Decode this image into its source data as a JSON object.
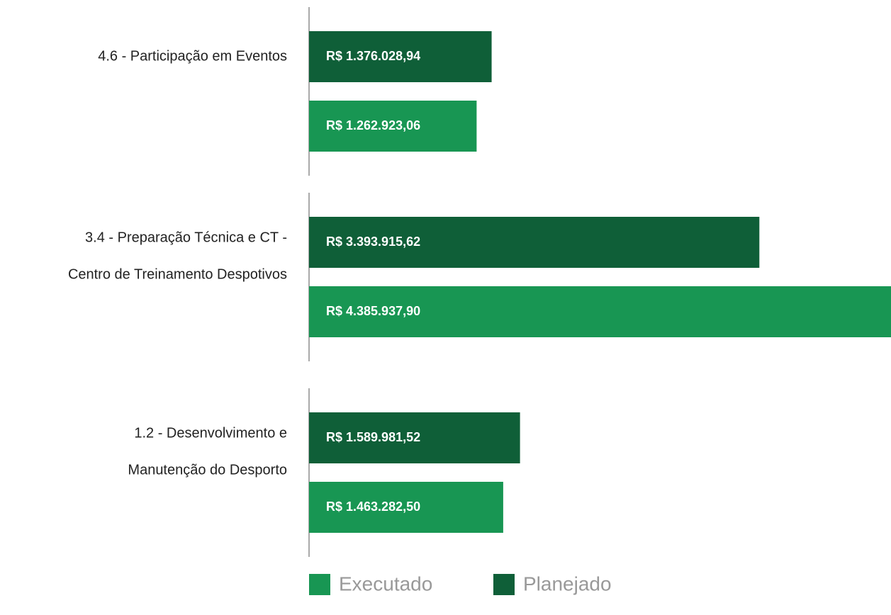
{
  "chart_data": {
    "type": "hbar",
    "categories": [
      [
        "4.6 - Participação em Eventos"
      ],
      [
        "3.4 - Preparação Técnica e CT -",
        "Centro de Treinamento Despotivos"
      ],
      [
        "1.2 - Desenvolvimento e",
        "Manutenção do Desporto"
      ]
    ],
    "series": [
      {
        "name": "Planejado",
        "color": "#0f5f38",
        "values": [
          1376028.94,
          3393915.62,
          1589981.52
        ],
        "value_labels": [
          "R$ 1.376.028,94",
          "R$ 3.393.915,62",
          "R$ 1.589.981,52"
        ]
      },
      {
        "name": "Executado",
        "color": "#189653",
        "values": [
          1262923.06,
          4385937.9,
          1463282.5
        ],
        "value_labels": [
          "R$ 1.262.923,06",
          "R$ 4.385.937,90",
          "R$ 1.463.282,50"
        ]
      }
    ],
    "legend_order": [
      "Executado",
      "Planejado"
    ]
  }
}
